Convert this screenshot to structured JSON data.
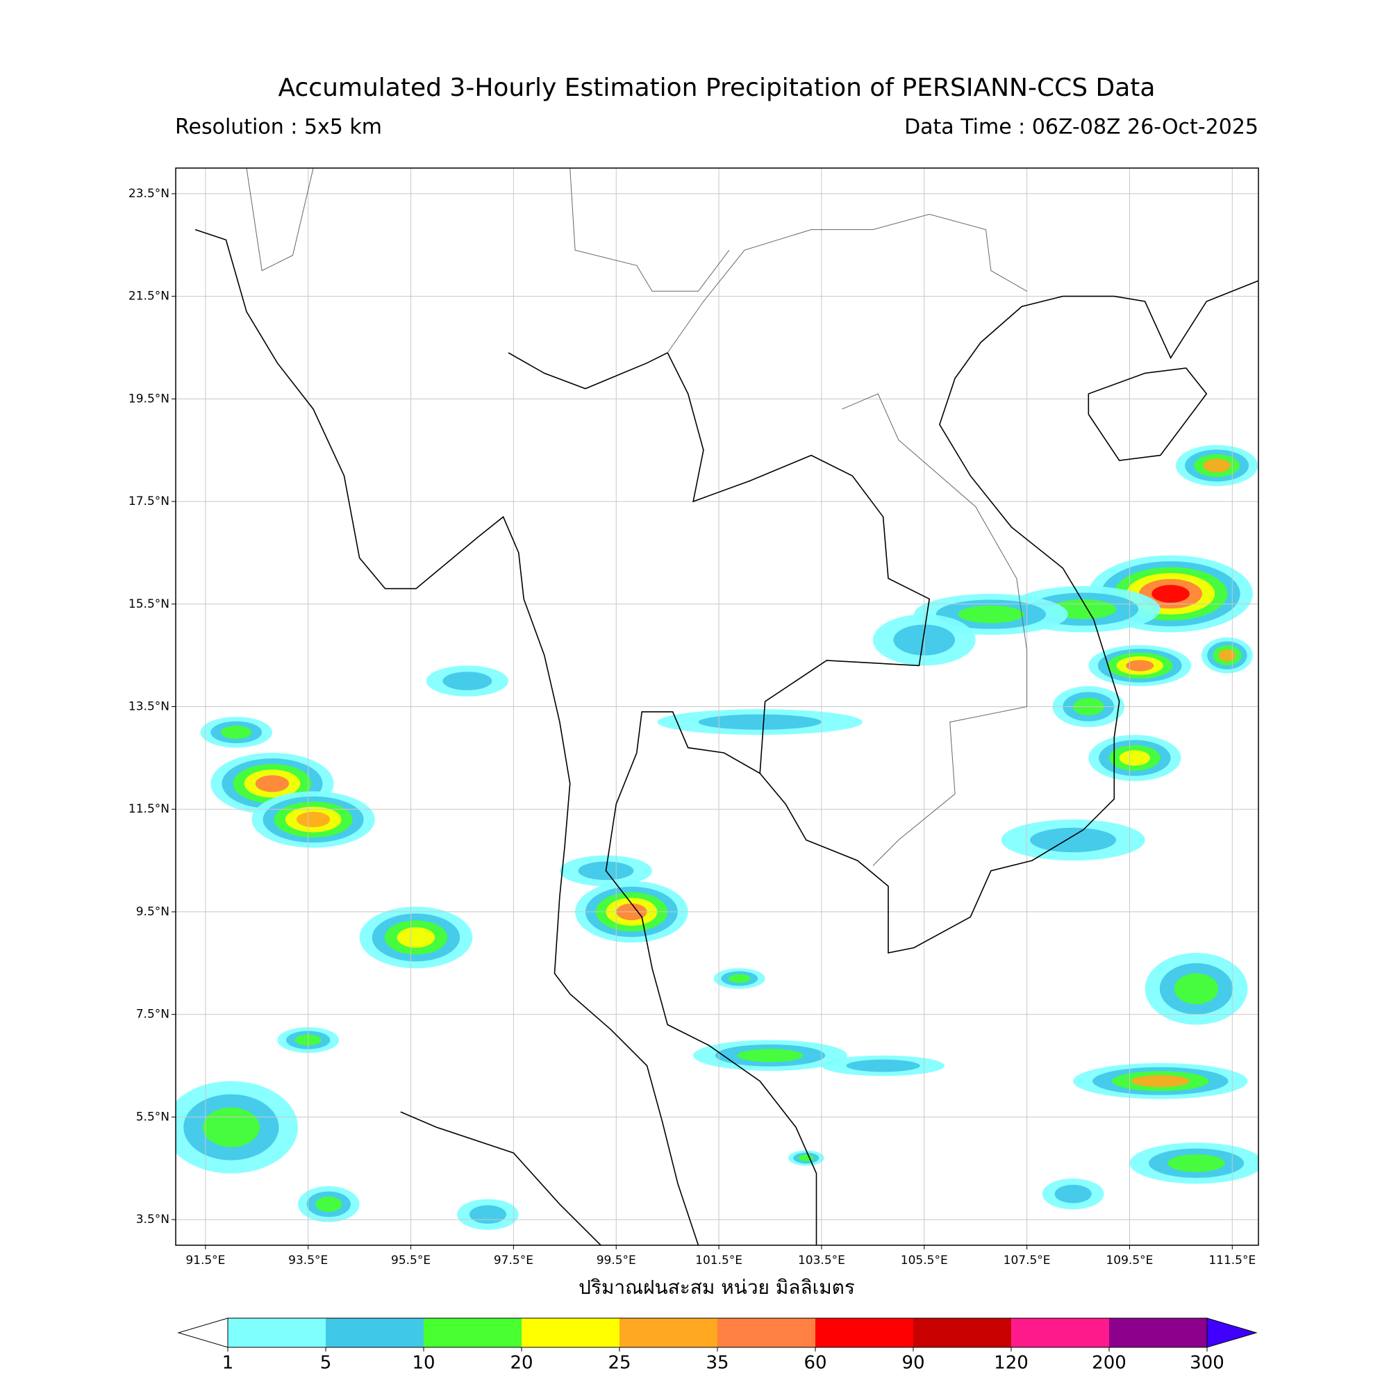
{
  "header": {
    "title": "Accumulated 3-Hourly Estimation Precipitation of PERSIANN-CCS Data",
    "resolution": "Resolution : 5x5 km",
    "data_time": "Data Time : 06Z-08Z 26-Oct-2025"
  },
  "map": {
    "lon_range": [
      90.92,
      112.01
    ],
    "lat_range": [
      3.0,
      24.0
    ],
    "lon_ticks": [
      {
        "value": 91.5,
        "label": "91.5°E"
      },
      {
        "value": 93.5,
        "label": "93.5°E"
      },
      {
        "value": 95.5,
        "label": "95.5°E"
      },
      {
        "value": 97.5,
        "label": "97.5°E"
      },
      {
        "value": 99.5,
        "label": "99.5°E"
      },
      {
        "value": 101.5,
        "label": "101.5°E"
      },
      {
        "value": 103.5,
        "label": "103.5°E"
      },
      {
        "value": 105.5,
        "label": "105.5°E"
      },
      {
        "value": 107.5,
        "label": "107.5°E"
      },
      {
        "value": 109.5,
        "label": "109.5°E"
      },
      {
        "value": 111.5,
        "label": "111.5°E"
      }
    ],
    "lat_ticks": [
      {
        "value": 23.5,
        "label": "23.5°N"
      },
      {
        "value": 21.5,
        "label": "21.5°N"
      },
      {
        "value": 19.5,
        "label": "19.5°N"
      },
      {
        "value": 17.5,
        "label": "17.5°N"
      },
      {
        "value": 15.5,
        "label": "15.5°N"
      },
      {
        "value": 13.5,
        "label": "13.5°N"
      },
      {
        "value": 11.5,
        "label": "11.5°N"
      },
      {
        "value": 9.5,
        "label": "9.5°N"
      },
      {
        "value": 7.5,
        "label": "7.5°N"
      },
      {
        "value": 5.5,
        "label": "5.5°N"
      },
      {
        "value": 3.5,
        "label": "3.5°N"
      }
    ],
    "grid": true,
    "x_label": "ปริมาณฝนสะสม หน่วย มิลลิเมตร"
  },
  "colorbar": {
    "levels": [
      1,
      5,
      10,
      20,
      25,
      35,
      60,
      90,
      120,
      200,
      300
    ],
    "colors": [
      "#80ffff",
      "#40c8e8",
      "#48ff30",
      "#ffff00",
      "#ffa820",
      "#ff8040",
      "#ff0000",
      "#c80000",
      "#ff1a8c",
      "#8c008c"
    ],
    "under_color": "#ffffff",
    "over_color": "#4000ff"
  }
}
